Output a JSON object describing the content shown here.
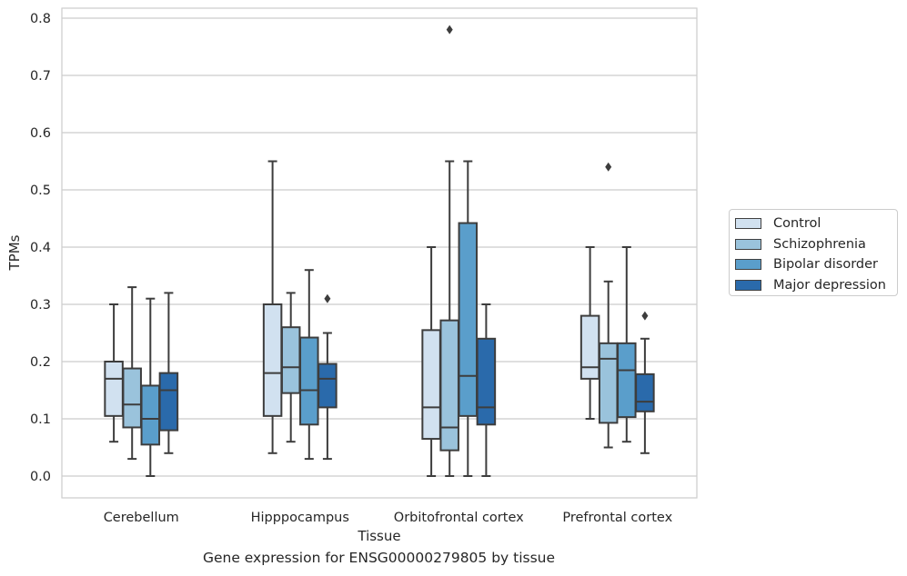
{
  "chart_data": {
    "type": "box",
    "xlabel": "Tissue",
    "ylabel": "TPMs",
    "ylim": [
      -0.04,
      0.82
    ],
    "yticks": [
      0.0,
      0.1,
      0.2,
      0.3,
      0.4,
      0.5,
      0.6,
      0.7,
      0.8
    ],
    "ytick_labels": [
      "0.0",
      "0.1",
      "0.2",
      "0.3",
      "0.4",
      "0.5",
      "0.6",
      "0.7",
      "0.8"
    ],
    "grid": "horizontal",
    "legend_placement": "right",
    "categories": [
      "Cerebellum",
      "Hipppocampus",
      "Orbitofrontal cortex",
      "Prefrontal cortex"
    ],
    "series": [
      {
        "name": "Control",
        "color": "#d1e1f0",
        "boxes": [
          {
            "whisker_low": 0.06,
            "q1": 0.105,
            "median": 0.17,
            "q3": 0.2,
            "whisker_high": 0.3,
            "outliers": []
          },
          {
            "whisker_low": 0.04,
            "q1": 0.105,
            "median": 0.18,
            "q3": 0.3,
            "whisker_high": 0.55,
            "outliers": []
          },
          {
            "whisker_low": 0.0,
            "q1": 0.065,
            "median": 0.12,
            "q3": 0.255,
            "whisker_high": 0.4,
            "outliers": []
          },
          {
            "whisker_low": 0.1,
            "q1": 0.17,
            "median": 0.19,
            "q3": 0.28,
            "whisker_high": 0.4,
            "outliers": []
          }
        ]
      },
      {
        "name": "Schizophrenia",
        "color": "#9ac3dc",
        "boxes": [
          {
            "whisker_low": 0.03,
            "q1": 0.085,
            "median": 0.125,
            "q3": 0.188,
            "whisker_high": 0.33,
            "outliers": []
          },
          {
            "whisker_low": 0.06,
            "q1": 0.145,
            "median": 0.19,
            "q3": 0.26,
            "whisker_high": 0.32,
            "outliers": []
          },
          {
            "whisker_low": 0.0,
            "q1": 0.045,
            "median": 0.085,
            "q3": 0.272,
            "whisker_high": 0.55,
            "outliers": [
              0.78
            ]
          },
          {
            "whisker_low": 0.05,
            "q1": 0.093,
            "median": 0.205,
            "q3": 0.232,
            "whisker_high": 0.34,
            "outliers": [
              0.54
            ]
          }
        ]
      },
      {
        "name": "Bipolar disorder",
        "color": "#5a9ecb",
        "boxes": [
          {
            "whisker_low": 0.0,
            "q1": 0.055,
            "median": 0.1,
            "q3": 0.158,
            "whisker_high": 0.31,
            "outliers": []
          },
          {
            "whisker_low": 0.03,
            "q1": 0.09,
            "median": 0.15,
            "q3": 0.242,
            "whisker_high": 0.36,
            "outliers": []
          },
          {
            "whisker_low": 0.0,
            "q1": 0.105,
            "median": 0.175,
            "q3": 0.442,
            "whisker_high": 0.55,
            "outliers": []
          },
          {
            "whisker_low": 0.06,
            "q1": 0.103,
            "median": 0.185,
            "q3": 0.232,
            "whisker_high": 0.4,
            "outliers": []
          }
        ]
      },
      {
        "name": "Major depression",
        "color": "#2a6aab",
        "boxes": [
          {
            "whisker_low": 0.04,
            "q1": 0.08,
            "median": 0.15,
            "q3": 0.18,
            "whisker_high": 0.32,
            "outliers": []
          },
          {
            "whisker_low": 0.03,
            "q1": 0.12,
            "median": 0.17,
            "q3": 0.196,
            "whisker_high": 0.25,
            "outliers": [
              0.31
            ]
          },
          {
            "whisker_low": 0.0,
            "q1": 0.09,
            "median": 0.12,
            "q3": 0.24,
            "whisker_high": 0.3,
            "outliers": []
          },
          {
            "whisker_low": 0.04,
            "q1": 0.113,
            "median": 0.13,
            "q3": 0.178,
            "whisker_high": 0.24,
            "outliers": [
              0.28
            ]
          }
        ]
      }
    ]
  },
  "caption": "Gene expression for ENSG00000279805 by tissue"
}
